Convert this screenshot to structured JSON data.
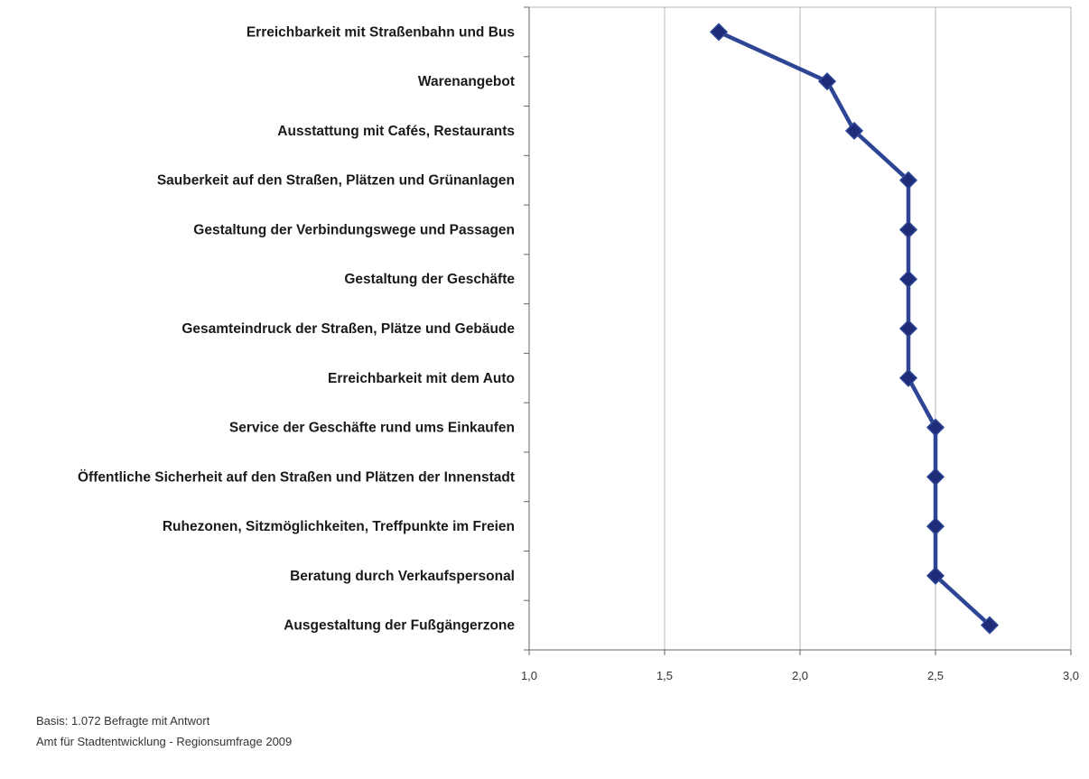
{
  "chart_data": {
    "type": "line",
    "orientation": "horizontal",
    "categories": [
      "Erreichbarkeit mit Straßenbahn und Bus",
      "Warenangebot",
      "Ausstattung mit Cafés, Restaurants",
      "Sauberkeit auf den Straßen, Plätzen und Grünanlagen",
      "Gestaltung der Verbindungswege und Passagen",
      "Gestaltung der Geschäfte",
      "Gesamteindruck der Straßen, Plätze und Gebäude",
      "Erreichbarkeit mit dem Auto",
      "Service der Geschäfte rund ums Einkaufen",
      "Öffentliche Sicherheit auf den Straßen und Plätzen der Innenstadt",
      "Ruhezonen, Sitzmöglichkeiten, Treffpunkte im Freien",
      "Beratung durch Verkaufspersonal",
      "Ausgestaltung der Fußgängerzone"
    ],
    "values": [
      1.7,
      2.1,
      2.2,
      2.4,
      2.4,
      2.4,
      2.4,
      2.4,
      2.5,
      2.5,
      2.5,
      2.5,
      2.7
    ],
    "xlim": [
      1.0,
      3.0
    ],
    "xticks": [
      "1,0",
      "1,5",
      "2,0",
      "2,5",
      "3,0"
    ],
    "grid": true,
    "series_color": "#2e4596",
    "marker_color": "#1f2d78",
    "marker": "diamond"
  },
  "footer": {
    "basis": "Basis: 1.072 Befragte mit Antwort",
    "source": "Amt für Stadtentwicklung - Regionsumfrage 2009"
  }
}
